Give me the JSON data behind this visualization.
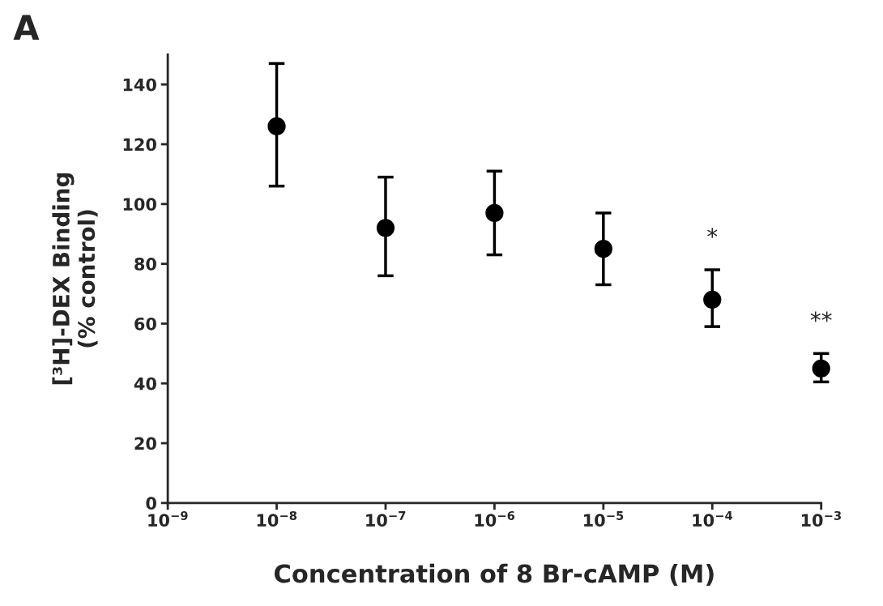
{
  "chart_data": {
    "type": "scatter",
    "xlabel": "Concentration of 8 Br-cAMP (M)",
    "ylabel": "[³H]-DEX Binding\n(% control)",
    "log": "x",
    "x": [
      1e-08,
      1e-07,
      1e-06,
      1e-05,
      0.0001,
      0.001
    ],
    "series": [
      {
        "color": "#000000",
        "values": [
          126,
          92,
          97,
          85,
          68,
          45
        ],
        "errors": [
          [
            106,
            147
          ],
          [
            76,
            109
          ],
          [
            83,
            111
          ],
          [
            73,
            97
          ],
          [
            59,
            78
          ],
          [
            40.5,
            50
          ]
        ]
      }
    ],
    "marker": "circle",
    "grid": false,
    "legend": false,
    "xlim": [
      1e-09,
      0.001
    ],
    "xticks": [
      {
        "value": 1e-09,
        "label": "10$^{−9}$"
      },
      {
        "value": 1e-08,
        "label": "10$^{−8}$"
      },
      {
        "value": 1e-07,
        "label": "10$^{−7}$"
      },
      {
        "value": 1e-06,
        "label": "10$^{−6}$"
      },
      {
        "value": 1e-05,
        "label": "10$^{−5}$"
      },
      {
        "value": 0.0001,
        "label": "10$^{−4}$"
      },
      {
        "value": 0.001,
        "label": "10$^{−3}$"
      }
    ],
    "ylim": [
      0,
      150
    ],
    "yticks": [
      0,
      20,
      40,
      60,
      80,
      100,
      120,
      140
    ],
    "annotations": [
      "A",
      "*",
      "**"
    ]
  }
}
